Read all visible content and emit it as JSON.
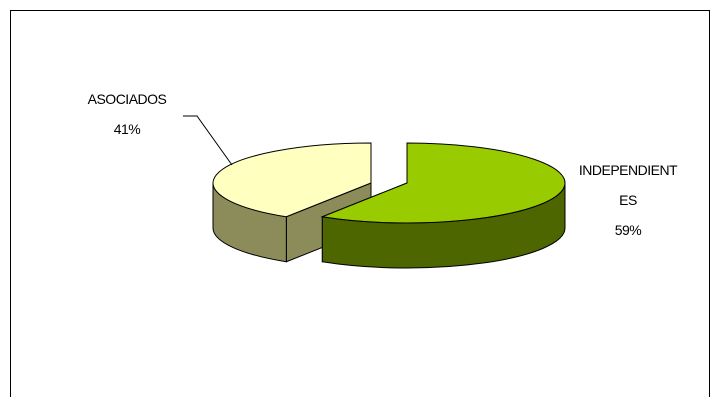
{
  "chart_data": {
    "type": "pie",
    "style": "3d-exploded",
    "title": "",
    "categories": [
      "ASOCIADOS",
      "INDEPENDIENTES"
    ],
    "values": [
      41,
      59
    ],
    "labels": [
      {
        "lines": [
          "ASOCIADOS",
          "41%"
        ]
      },
      {
        "lines": [
          "INDEPENDIENT",
          "ES",
          "59%"
        ]
      }
    ],
    "colors": {
      "ASOCIADOS_top": "#ffffc0",
      "ASOCIADOS_side": "#8c8c5a",
      "INDEPENDIENTES_top": "#99cc00",
      "INDEPENDIENTES_side": "#4d6600",
      "outline": "#000000"
    },
    "legend": "none",
    "grid": false
  }
}
